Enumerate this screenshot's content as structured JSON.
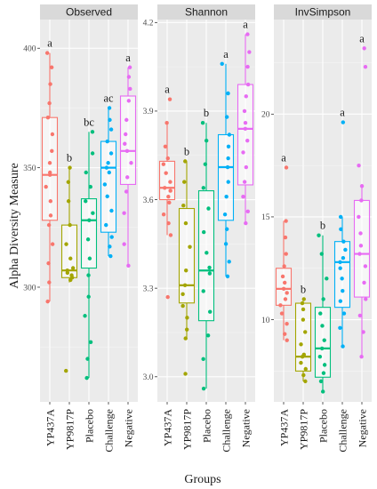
{
  "chart_data": {
    "type": "box",
    "xlabel": "Groups",
    "ylabel": "Alpha Diversity Measure",
    "categories": [
      "YP437A",
      "YP9817P",
      "Placebo",
      "Challenge",
      "Negative"
    ],
    "colors": {
      "YP437A": "#F8766D",
      "YP9817P": "#A3A500",
      "Placebo": "#00BF7D",
      "Challenge": "#00B0F6",
      "Negative": "#E76BF3"
    },
    "grid": true,
    "panels": [
      {
        "title": "Observed",
        "ylim": [
          252,
          412
        ],
        "yticks": [
          300,
          350,
          400
        ],
        "boxes": [
          {
            "group": "YP437A",
            "q1": 328,
            "median": 347,
            "q3": 371,
            "whisker_low": 294,
            "whisker_high": 398,
            "letter": "a",
            "points": [
              398,
              392,
              385,
              377,
              371,
              364,
              357,
              352,
              348,
              347,
              342,
              336,
              330,
              326,
              318,
              310,
              302,
              294
            ]
          },
          {
            "group": "YP9817P",
            "q1": 304,
            "median": 307,
            "q3": 326,
            "whisker_low": 302,
            "whisker_high": 350,
            "letter": "b",
            "points": [
              350,
              344,
              336,
              326,
              318,
              312,
              308,
              307,
              306,
              305,
              304,
              303,
              265
            ]
          },
          {
            "group": "Placebo",
            "q1": 308,
            "median": 328,
            "q3": 337,
            "whisker_low": 262,
            "whisker_high": 365,
            "letter": "bc",
            "points": [
              365,
              356,
              348,
              342,
              336,
              331,
              328,
              320,
              312,
              305,
              296,
              288,
              277,
              270,
              262
            ]
          },
          {
            "group": "Challenge",
            "q1": 323,
            "median": 350,
            "q3": 361,
            "whisker_low": 313,
            "whisker_high": 375,
            "letter": "ac",
            "points": [
              375,
              370,
              366,
              361,
              356,
              352,
              350,
              348,
              343,
              338,
              332,
              326,
              321,
              317,
              313
            ]
          },
          {
            "group": "Negative",
            "q1": 343,
            "median": 357,
            "q3": 380,
            "whisker_low": 309,
            "whisker_high": 392,
            "letter": "a",
            "points": [
              392,
              388,
              383,
              378,
              370,
              364,
              360,
              357,
              352,
              346,
              340,
              331,
              318,
              309
            ]
          }
        ]
      },
      {
        "title": "Shannon",
        "ylim": [
          2.915,
          4.21
        ],
        "yticks": [
          3.0,
          3.3,
          3.6,
          3.9,
          4.2
        ],
        "yticklabels": [
          "3.0",
          "3.3",
          "3.6",
          "3.9",
          "4.2"
        ],
        "boxes": [
          {
            "group": "YP437A",
            "q1": 3.6,
            "median": 3.64,
            "q3": 3.73,
            "whisker_low": 3.48,
            "whisker_high": 3.86,
            "letter": "a",
            "points": [
              3.94,
              3.86,
              3.78,
              3.74,
              3.72,
              3.69,
              3.66,
              3.64,
              3.63,
              3.61,
              3.59,
              3.55,
              3.52,
              3.48,
              3.27
            ]
          },
          {
            "group": "YP9817P",
            "q1": 3.25,
            "median": 3.31,
            "q3": 3.57,
            "whisker_low": 3.13,
            "whisker_high": 3.73,
            "letter": "b",
            "points": [
              3.73,
              3.66,
              3.58,
              3.52,
              3.44,
              3.36,
              3.31,
              3.28,
              3.24,
              3.2,
              3.16,
              3.13,
              3.01
            ]
          },
          {
            "group": "Placebo",
            "q1": 3.19,
            "median": 3.36,
            "q3": 3.63,
            "whisker_low": 2.96,
            "whisker_high": 3.86,
            "letter": "b",
            "points": [
              3.86,
              3.8,
              3.72,
              3.64,
              3.57,
              3.49,
              3.42,
              3.37,
              3.35,
              3.29,
              3.22,
              3.14,
              3.06,
              2.96
            ]
          },
          {
            "group": "Challenge",
            "q1": 3.53,
            "median": 3.71,
            "q3": 3.82,
            "whisker_low": 3.34,
            "whisker_high": 4.06,
            "letter": "a",
            "points": [
              4.06,
              3.96,
              3.88,
              3.82,
              3.78,
              3.74,
              3.71,
              3.66,
              3.61,
              3.55,
              3.5,
              3.45,
              3.39,
              3.34
            ]
          },
          {
            "group": "Negative",
            "q1": 3.65,
            "median": 3.84,
            "q3": 3.99,
            "whisker_low": 3.52,
            "whisker_high": 4.16,
            "letter": "a",
            "points": [
              4.16,
              4.1,
              4.05,
              3.99,
              3.95,
              3.9,
              3.86,
              3.84,
              3.8,
              3.76,
              3.71,
              3.66,
              3.61,
              3.56,
              3.52
            ]
          }
        ]
      },
      {
        "title": "InvSimpson",
        "ylim": [
          6.0,
          24.6
        ],
        "yticks": [
          10,
          15,
          20
        ],
        "boxes": [
          {
            "group": "YP437A",
            "q1": 10.7,
            "median": 11.5,
            "q3": 12.5,
            "whisker_low": 9.0,
            "whisker_high": 14.8,
            "letter": "a",
            "points": [
              17.4,
              14.8,
              14.0,
              13.2,
              12.6,
              12.1,
              11.8,
              11.5,
              11.3,
              11.0,
              10.7,
              10.3,
              9.8,
              9.3,
              9.0
            ]
          },
          {
            "group": "YP9817P",
            "q1": 7.5,
            "median": 8.2,
            "q3": 10.8,
            "whisker_low": 7.0,
            "whisker_high": 11.0,
            "letter": "b",
            "points": [
              11.0,
              10.8,
              10.5,
              10.0,
              9.4,
              8.8,
              8.3,
              8.2,
              7.9,
              7.6,
              7.3,
              7.0
            ]
          },
          {
            "group": "Placebo",
            "q1": 7.2,
            "median": 8.6,
            "q3": 10.6,
            "whisker_low": 6.5,
            "whisker_high": 14.1,
            "letter": "b",
            "points": [
              14.1,
              13.2,
              12.0,
              11.0,
              10.3,
              9.7,
              9.0,
              8.6,
              8.2,
              7.8,
              7.4,
              7.0,
              6.5
            ]
          },
          {
            "group": "Challenge",
            "q1": 10.6,
            "median": 12.8,
            "q3": 13.8,
            "whisker_low": 8.7,
            "whisker_high": 15.0,
            "letter": "a",
            "points": [
              19.6,
              15.0,
              14.4,
              13.8,
              13.4,
              13.0,
              12.8,
              12.5,
              12.0,
              11.4,
              10.9,
              10.3,
              9.6,
              8.7
            ]
          },
          {
            "group": "Negative",
            "q1": 11.1,
            "median": 13.2,
            "q3": 15.8,
            "whisker_low": 8.2,
            "whisker_high": 16.5,
            "letter": "a",
            "points": [
              23.2,
              22.3,
              17.5,
              16.5,
              15.8,
              15.0,
              14.2,
              13.6,
              13.2,
              12.6,
              11.8,
              11.0,
              10.2,
              9.4,
              8.2
            ]
          }
        ]
      }
    ]
  }
}
